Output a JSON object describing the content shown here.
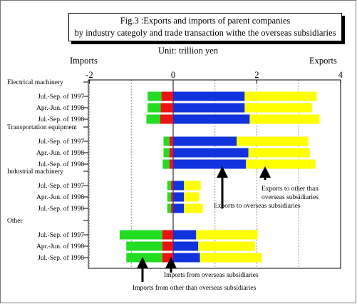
{
  "header": {
    "title_line1": "Fig.3 :Exports and imports of parent companies",
    "title_line2": "by industry categoly and trade transaction withe the overseas subsidiaries",
    "unit": "Unit: trillion yen",
    "left_label": "Imports",
    "right_label": "Exports"
  },
  "colors": {
    "imports_other": "#22dd22",
    "imports_subsidiaries": "#ee1111",
    "exports_subsidiaries": "#1133dd",
    "exports_other": "#ffff00",
    "grid": "#999999"
  },
  "chart_data": {
    "type": "bar",
    "orientation": "horizontal-diverging",
    "xlim": [
      -2,
      4
    ],
    "x_ticks": [
      "-2",
      "0",
      "2",
      "4"
    ],
    "grid": true,
    "groups": [
      {
        "name": "Electrical machinery",
        "rows": [
          {
            "label": "Jul.-Sep. of 1997",
            "imports_other": 0.33,
            "imports_subsidiaries": 0.28,
            "exports_subsidiaries": 1.71,
            "exports_other": 1.72
          },
          {
            "label": "Apr.-Jun. of 1998",
            "imports_other": 0.31,
            "imports_subsidiaries": 0.3,
            "exports_subsidiaries": 1.71,
            "exports_other": 1.61
          },
          {
            "label": "Jul.-Sep. of 1998",
            "imports_other": 0.33,
            "imports_subsidiaries": 0.31,
            "exports_subsidiaries": 1.83,
            "exports_other": 1.67
          }
        ]
      },
      {
        "name": "Transportation equipment",
        "rows": [
          {
            "label": "Jul.-Sep. of 1997",
            "imports_other": 0.14,
            "imports_subsidiaries": 0.09,
            "exports_subsidiaries": 1.52,
            "exports_other": 1.71
          },
          {
            "label": "Apr.-Jun. of 1998",
            "imports_other": 0.14,
            "imports_subsidiaries": 0.09,
            "exports_subsidiaries": 1.8,
            "exports_other": 1.47
          },
          {
            "label": "Jul.-Sep. of 1998",
            "imports_other": 0.16,
            "imports_subsidiaries": 0.09,
            "exports_subsidiaries": 1.74,
            "exports_other": 1.66
          }
        ]
      },
      {
        "name": "Industrial machinery",
        "rows": [
          {
            "label": "Jul.-Sep. of 1997",
            "imports_other": 0.09,
            "imports_subsidiaries": 0.05,
            "exports_subsidiaries": 0.26,
            "exports_other": 0.4
          },
          {
            "label": "Apr.-Jun. of 1998",
            "imports_other": 0.09,
            "imports_subsidiaries": 0.05,
            "exports_subsidiaries": 0.26,
            "exports_other": 0.36
          },
          {
            "label": "Jul.-Sep. of 1998",
            "imports_other": 0.09,
            "imports_subsidiaries": 0.05,
            "exports_subsidiaries": 0.26,
            "exports_other": 0.45
          }
        ]
      },
      {
        "name": "Other",
        "rows": [
          {
            "label": "Jul.-Sep. of 1997",
            "imports_other": 1.02,
            "imports_subsidiaries": 0.26,
            "exports_subsidiaries": 0.55,
            "exports_other": 1.47
          },
          {
            "label": "Apr.-Jun. of 1998",
            "imports_other": 0.86,
            "imports_subsidiaries": 0.26,
            "exports_subsidiaries": 0.6,
            "exports_other": 1.36
          },
          {
            "label": "Jul.-Sep. of 1998",
            "imports_other": 0.86,
            "imports_subsidiaries": 0.26,
            "exports_subsidiaries": 0.64,
            "exports_other": 1.48
          }
        ]
      }
    ],
    "annotations": [
      {
        "text": "Exports to other than",
        "target": "exports_other"
      },
      {
        "text": "overseas subsidiaries",
        "target": "exports_other"
      },
      {
        "text": "Exports to overseas subsidiaries",
        "target": "exports_subsidiaries"
      },
      {
        "text": "Imports from overseas subsidiaries",
        "target": "imports_subsidiaries"
      },
      {
        "text": "Imports from other than overseas subsidiaries",
        "target": "imports_other"
      }
    ]
  }
}
